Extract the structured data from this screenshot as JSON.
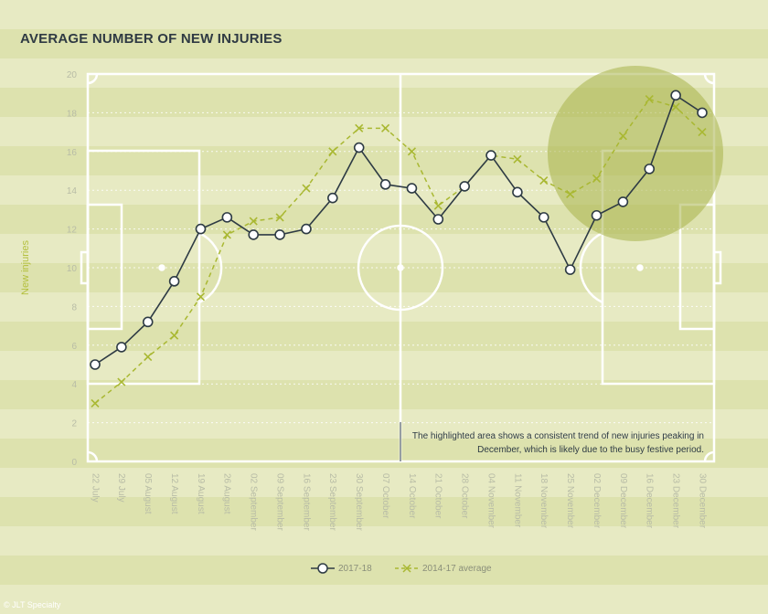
{
  "header": {
    "title": "AVERAGE NUMBER OF NEW INJURIES"
  },
  "footer": {
    "credit": "© JLT Specialty"
  },
  "colors": {
    "series_2017": "#2e3b44",
    "series_avg": "#a9b832",
    "highlight": "#a8b24a",
    "stripe_light": "#e7eac3",
    "stripe_dark": "#dde2ae",
    "axis_label": "#b3bf3c",
    "tick_label": "#b8bca6"
  },
  "annotation": {
    "lines": [
      "The highlighted area shows a consistent trend of new injuries peaking in",
      "December, which is likely due to the busy festive period."
    ]
  },
  "chart_data": {
    "type": "line",
    "title": "AVERAGE NUMBER OF NEW INJURIES",
    "xlabel": "",
    "ylabel": "New injuries",
    "ylim": [
      0,
      20
    ],
    "yticks": [
      0,
      2,
      4,
      6,
      8,
      10,
      12,
      14,
      16,
      18,
      20
    ],
    "grid": true,
    "legend_position": "bottom-center",
    "categories": [
      "22 July",
      "29 July",
      "05 August",
      "12 August",
      "19 August",
      "26 August",
      "02 September",
      "09 September",
      "16 September",
      "23 September",
      "30 September",
      "07 October",
      "14 October",
      "21 October",
      "28 October",
      "04 November",
      "11 November",
      "18 November",
      "25 November",
      "02 December",
      "09 December",
      "16 December",
      "23 December",
      "30 December"
    ],
    "series": [
      {
        "name": "2017-18",
        "marker": "circle",
        "values": [
          5.0,
          5.9,
          7.2,
          9.3,
          12.0,
          12.6,
          11.7,
          11.7,
          12.0,
          13.6,
          16.2,
          14.3,
          14.1,
          12.5,
          14.2,
          15.8,
          13.9,
          12.6,
          9.9,
          12.7,
          13.4,
          15.1,
          18.9,
          18.0
        ]
      },
      {
        "name": "2014-17 average",
        "marker": "x",
        "values": [
          3.0,
          4.1,
          5.4,
          6.5,
          8.5,
          11.7,
          12.4,
          12.6,
          14.1,
          16.0,
          17.2,
          17.2,
          16.0,
          13.2,
          14.2,
          15.8,
          15.6,
          14.5,
          13.8,
          14.6,
          16.8,
          18.7,
          18.3,
          17.0
        ]
      }
    ]
  }
}
